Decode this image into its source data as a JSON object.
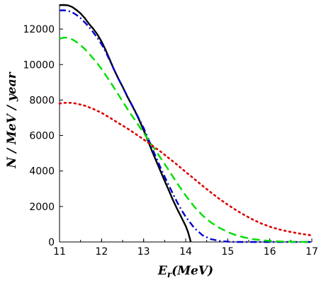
{
  "chart_data": {
    "type": "line",
    "title": "",
    "xlabel": {
      "base": "E",
      "sub": "r",
      "rest": "(MeV)"
    },
    "ylabel": "N / MeV / year",
    "xlim": [
      11,
      17
    ],
    "ylim": [
      0,
      13400
    ],
    "xticks": [
      11,
      12,
      13,
      14,
      15,
      16,
      17
    ],
    "yticks": [
      0,
      2000,
      4000,
      6000,
      8000,
      10000,
      12000
    ],
    "grid": false,
    "legend": "none",
    "series": [
      {
        "color": "#000000",
        "style": "solid",
        "points": [
          [
            11.0,
            13350
          ],
          [
            11.1,
            13360
          ],
          [
            11.2,
            13340
          ],
          [
            11.3,
            13250
          ],
          [
            11.4,
            13080
          ],
          [
            11.5,
            12880
          ],
          [
            11.6,
            12620
          ],
          [
            11.7,
            12300
          ],
          [
            11.8,
            12020
          ],
          [
            11.9,
            11700
          ],
          [
            12.0,
            11300
          ],
          [
            12.1,
            10800
          ],
          [
            12.2,
            10250
          ],
          [
            12.3,
            9700
          ],
          [
            12.4,
            9200
          ],
          [
            12.5,
            8750
          ],
          [
            12.6,
            8250
          ],
          [
            12.7,
            7800
          ],
          [
            12.8,
            7350
          ],
          [
            12.9,
            6850
          ],
          [
            13.0,
            6300
          ],
          [
            13.1,
            5720
          ],
          [
            13.2,
            5130
          ],
          [
            13.3,
            4560
          ],
          [
            13.4,
            4000
          ],
          [
            13.5,
            3450
          ],
          [
            13.6,
            2900
          ],
          [
            13.7,
            2350
          ],
          [
            13.8,
            1850
          ],
          [
            13.9,
            1380
          ],
          [
            14.0,
            900
          ],
          [
            14.05,
            600
          ],
          [
            14.1,
            200
          ],
          [
            14.12,
            0
          ]
        ]
      },
      {
        "color": "#0000cc",
        "style": "dashdot",
        "points": [
          [
            11.0,
            13050
          ],
          [
            11.1,
            13060
          ],
          [
            11.2,
            13030
          ],
          [
            11.3,
            12950
          ],
          [
            11.4,
            12800
          ],
          [
            11.5,
            12620
          ],
          [
            11.6,
            12380
          ],
          [
            11.7,
            12120
          ],
          [
            11.8,
            11820
          ],
          [
            11.9,
            11500
          ],
          [
            12.0,
            11150
          ],
          [
            12.1,
            10700
          ],
          [
            12.2,
            10200
          ],
          [
            12.3,
            9700
          ],
          [
            12.4,
            9200
          ],
          [
            12.5,
            8750
          ],
          [
            12.6,
            8280
          ],
          [
            12.7,
            7820
          ],
          [
            12.8,
            7370
          ],
          [
            12.9,
            6900
          ],
          [
            13.0,
            6420
          ],
          [
            13.1,
            5870
          ],
          [
            13.2,
            5300
          ],
          [
            13.3,
            4750
          ],
          [
            13.4,
            4200
          ],
          [
            13.5,
            3680
          ],
          [
            13.6,
            3180
          ],
          [
            13.7,
            2700
          ],
          [
            13.8,
            2230
          ],
          [
            13.9,
            1800
          ],
          [
            14.0,
            1420
          ],
          [
            14.2,
            800
          ],
          [
            14.4,
            380
          ],
          [
            14.6,
            160
          ],
          [
            14.8,
            60
          ],
          [
            15.0,
            15
          ],
          [
            15.2,
            0
          ],
          [
            16.0,
            0
          ],
          [
            17.0,
            0
          ]
        ]
      },
      {
        "color": "#00dd00",
        "style": "dashed",
        "points": [
          [
            11.0,
            11450
          ],
          [
            11.1,
            11520
          ],
          [
            11.2,
            11510
          ],
          [
            11.3,
            11420
          ],
          [
            11.4,
            11280
          ],
          [
            11.5,
            11100
          ],
          [
            11.6,
            10880
          ],
          [
            11.7,
            10620
          ],
          [
            11.8,
            10350
          ],
          [
            11.9,
            10060
          ],
          [
            12.0,
            9750
          ],
          [
            12.2,
            9050
          ],
          [
            12.4,
            8300
          ],
          [
            12.6,
            7550
          ],
          [
            12.8,
            6850
          ],
          [
            13.0,
            6150
          ],
          [
            13.2,
            5450
          ],
          [
            13.4,
            4750
          ],
          [
            13.6,
            4030
          ],
          [
            13.8,
            3300
          ],
          [
            14.0,
            2620
          ],
          [
            14.2,
            2000
          ],
          [
            14.4,
            1500
          ],
          [
            14.6,
            1100
          ],
          [
            14.8,
            800
          ],
          [
            15.0,
            560
          ],
          [
            15.2,
            380
          ],
          [
            15.4,
            250
          ],
          [
            15.6,
            160
          ],
          [
            15.8,
            100
          ],
          [
            16.0,
            60
          ],
          [
            16.3,
            25
          ],
          [
            16.6,
            8
          ],
          [
            17.0,
            0
          ]
        ]
      },
      {
        "color": "#dd0000",
        "style": "dotted",
        "points": [
          [
            11.0,
            7800
          ],
          [
            11.1,
            7840
          ],
          [
            11.2,
            7850
          ],
          [
            11.3,
            7840
          ],
          [
            11.4,
            7800
          ],
          [
            11.6,
            7680
          ],
          [
            11.8,
            7500
          ],
          [
            12.0,
            7280
          ],
          [
            12.2,
            7000
          ],
          [
            12.4,
            6700
          ],
          [
            12.6,
            6420
          ],
          [
            12.8,
            6100
          ],
          [
            13.0,
            5780
          ],
          [
            13.2,
            5440
          ],
          [
            13.4,
            5100
          ],
          [
            13.6,
            4720
          ],
          [
            13.8,
            4350
          ],
          [
            14.0,
            3950
          ],
          [
            14.2,
            3560
          ],
          [
            14.4,
            3170
          ],
          [
            14.6,
            2790
          ],
          [
            14.8,
            2430
          ],
          [
            15.0,
            2100
          ],
          [
            15.2,
            1790
          ],
          [
            15.4,
            1510
          ],
          [
            15.6,
            1260
          ],
          [
            15.8,
            1040
          ],
          [
            16.0,
            860
          ],
          [
            16.2,
            720
          ],
          [
            16.4,
            610
          ],
          [
            16.6,
            520
          ],
          [
            16.8,
            440
          ],
          [
            17.0,
            370
          ]
        ]
      }
    ]
  }
}
